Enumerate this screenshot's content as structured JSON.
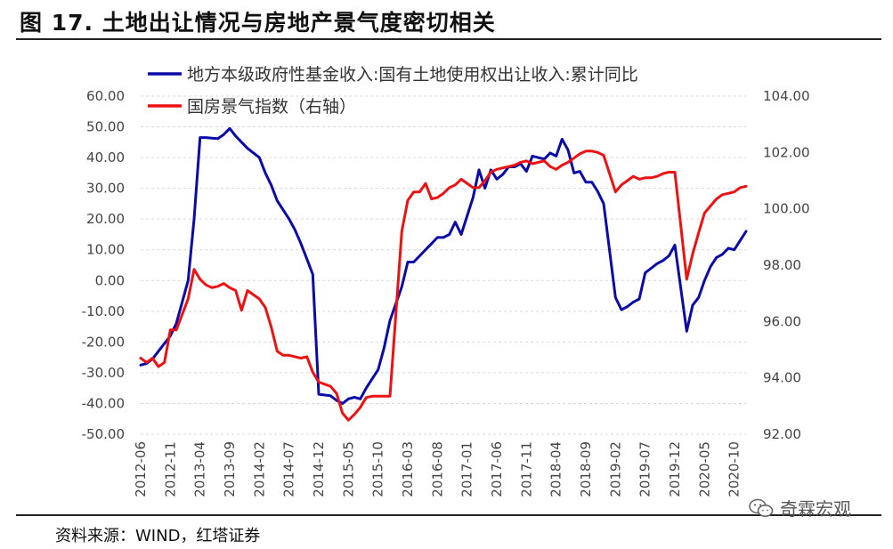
{
  "header": {
    "title": "图 17. 土地出让情况与房地产景气度密切相关"
  },
  "footer": {
    "source": "资料来源：WIND，红塔证券"
  },
  "watermark": {
    "text": "奇霖宏观",
    "icon": "wechat-icon"
  },
  "colors": {
    "series1": "#0a0aa8",
    "series2": "#ee1111",
    "grid": "#d9d9d9",
    "rule": "#222222"
  },
  "chart_data": {
    "type": "line",
    "left_axis": {
      "ylim": [
        -50,
        60
      ],
      "ticks": [
        "60.00",
        "50.00",
        "40.00",
        "30.00",
        "20.00",
        "10.00",
        "0.00",
        "-10.00",
        "-20.00",
        "-30.00",
        "-40.00",
        "-50.00"
      ],
      "tick_values": [
        60,
        50,
        40,
        30,
        20,
        10,
        0,
        -10,
        -20,
        -30,
        -40,
        -50
      ]
    },
    "right_axis": {
      "ylim": [
        92,
        104
      ],
      "ticks": [
        "104.00",
        "102.00",
        "100.00",
        "98.00",
        "96.00",
        "94.00",
        "92.00"
      ],
      "tick_values": [
        104,
        102,
        100,
        98,
        96,
        94,
        92
      ]
    },
    "x_range": [
      "2012-06",
      "2020-12"
    ],
    "x_ticks": [
      "2012-06",
      "2012-11",
      "2013-04",
      "2013-09",
      "2014-02",
      "2014-07",
      "2014-12",
      "2015-05",
      "2015-10",
      "2016-03",
      "2016-08",
      "2017-01",
      "2017-06",
      "2017-11",
      "2018-04",
      "2018-09",
      "2019-02",
      "2019-07",
      "2019-12",
      "2020-05",
      "2020-10"
    ],
    "legend_position": "top-left",
    "series": [
      {
        "name": "地方本级政府性基金收入:国有土地使用权出让收入:累计同比",
        "axis": "left",
        "points": [
          [
            "2012-06",
            -27.5
          ],
          [
            "2012-07",
            -27
          ],
          [
            "2012-08",
            -25.5
          ],
          [
            "2012-09",
            -23
          ],
          [
            "2012-10",
            -20.5
          ],
          [
            "2012-11",
            -18
          ],
          [
            "2012-12",
            -14
          ],
          [
            "2013-02",
            0
          ],
          [
            "2013-03",
            20
          ],
          [
            "2013-04",
            46.5
          ],
          [
            "2013-05",
            46.5
          ],
          [
            "2013-06",
            46.3
          ],
          [
            "2013-07",
            46.2
          ],
          [
            "2013-08",
            47.5
          ],
          [
            "2013-09",
            49.5
          ],
          [
            "2013-10",
            47
          ],
          [
            "2013-11",
            45
          ],
          [
            "2013-12",
            43
          ],
          [
            "2014-02",
            40
          ],
          [
            "2014-03",
            35
          ],
          [
            "2014-04",
            31
          ],
          [
            "2014-05",
            26
          ],
          [
            "2014-06",
            23
          ],
          [
            "2014-07",
            20
          ],
          [
            "2014-08",
            16.5
          ],
          [
            "2014-09",
            12
          ],
          [
            "2014-10",
            7
          ],
          [
            "2014-11",
            2
          ],
          [
            "2014-12",
            -37
          ],
          [
            "2015-02",
            -37.5
          ],
          [
            "2015-03",
            -39
          ],
          [
            "2015-04",
            -40
          ],
          [
            "2015-05",
            -38.5
          ],
          [
            "2015-06",
            -38
          ],
          [
            "2015-07",
            -38.5
          ],
          [
            "2015-08",
            -35
          ],
          [
            "2015-09",
            -32
          ],
          [
            "2015-10",
            -29
          ],
          [
            "2015-11",
            -22
          ],
          [
            "2015-12",
            -13
          ],
          [
            "2016-02",
            -2
          ],
          [
            "2016-03",
            6
          ],
          [
            "2016-04",
            6
          ],
          [
            "2016-05",
            8
          ],
          [
            "2016-06",
            10
          ],
          [
            "2016-07",
            12
          ],
          [
            "2016-08",
            14
          ],
          [
            "2016-09",
            14
          ],
          [
            "2016-10",
            15
          ],
          [
            "2016-11",
            19
          ],
          [
            "2016-12",
            15
          ],
          [
            "2017-02",
            27
          ],
          [
            "2017-03",
            36
          ],
          [
            "2017-04",
            30
          ],
          [
            "2017-05",
            36
          ],
          [
            "2017-06",
            33
          ],
          [
            "2017-07",
            34.5
          ],
          [
            "2017-08",
            37
          ],
          [
            "2017-09",
            37
          ],
          [
            "2017-10",
            38
          ],
          [
            "2017-11",
            35.5
          ],
          [
            "2017-12",
            40.5
          ],
          [
            "2018-02",
            39.5
          ],
          [
            "2018-03",
            41.5
          ],
          [
            "2018-04",
            40.5
          ],
          [
            "2018-05",
            46
          ],
          [
            "2018-06",
            42.5
          ],
          [
            "2018-07",
            35
          ],
          [
            "2018-08",
            35.5
          ],
          [
            "2018-09",
            32
          ],
          [
            "2018-10",
            32
          ],
          [
            "2018-11",
            29
          ],
          [
            "2018-12",
            25
          ],
          [
            "2019-02",
            -5.5
          ],
          [
            "2019-03",
            -9.5
          ],
          [
            "2019-04",
            -8.5
          ],
          [
            "2019-05",
            -7
          ],
          [
            "2019-06",
            -6
          ],
          [
            "2019-07",
            2.5
          ],
          [
            "2019-08",
            4
          ],
          [
            "2019-09",
            5.5
          ],
          [
            "2019-10",
            6.5
          ],
          [
            "2019-11",
            8
          ],
          [
            "2019-12",
            11.5
          ],
          [
            "2020-02",
            -16.5
          ],
          [
            "2020-03",
            -8
          ],
          [
            "2020-04",
            -5.5
          ],
          [
            "2020-05",
            0
          ],
          [
            "2020-06",
            4.5
          ],
          [
            "2020-07",
            7.5
          ],
          [
            "2020-08",
            8.5
          ],
          [
            "2020-09",
            10.5
          ],
          [
            "2020-10",
            10
          ],
          [
            "2020-11",
            13
          ],
          [
            "2020-12",
            16
          ]
        ]
      },
      {
        "name": "国房景气指数（右轴）",
        "axis": "right",
        "points": [
          [
            "2012-06",
            94.7
          ],
          [
            "2012-07",
            94.55
          ],
          [
            "2012-08",
            94.7
          ],
          [
            "2012-09",
            94.4
          ],
          [
            "2012-10",
            94.55
          ],
          [
            "2012-11",
            95.7
          ],
          [
            "2012-12",
            95.7
          ],
          [
            "2013-02",
            96.8
          ],
          [
            "2013-03",
            97.85
          ],
          [
            "2013-04",
            97.5
          ],
          [
            "2013-05",
            97.3
          ],
          [
            "2013-06",
            97.2
          ],
          [
            "2013-07",
            97.25
          ],
          [
            "2013-08",
            97.35
          ],
          [
            "2013-09",
            97.2
          ],
          [
            "2013-10",
            97.1
          ],
          [
            "2013-11",
            96.4
          ],
          [
            "2013-12",
            97.1
          ],
          [
            "2014-02",
            96.8
          ],
          [
            "2014-03",
            96.5
          ],
          [
            "2014-04",
            95.8
          ],
          [
            "2014-05",
            94.95
          ],
          [
            "2014-06",
            94.8
          ],
          [
            "2014-07",
            94.8
          ],
          [
            "2014-08",
            94.75
          ],
          [
            "2014-09",
            94.7
          ],
          [
            "2014-10",
            94.75
          ],
          [
            "2014-11",
            94.2
          ],
          [
            "2014-12",
            93.85
          ],
          [
            "2015-02",
            93.7
          ],
          [
            "2015-03",
            93.45
          ],
          [
            "2015-04",
            92.75
          ],
          [
            "2015-05",
            92.5
          ],
          [
            "2015-06",
            92.7
          ],
          [
            "2015-07",
            92.95
          ],
          [
            "2015-08",
            93.3
          ],
          [
            "2015-09",
            93.35
          ],
          [
            "2015-10",
            93.35
          ],
          [
            "2015-11",
            93.35
          ],
          [
            "2015-12",
            93.35
          ],
          [
            "2016-02",
            99.2
          ],
          [
            "2016-03",
            100.3
          ],
          [
            "2016-04",
            100.6
          ],
          [
            "2016-05",
            100.6
          ],
          [
            "2016-06",
            100.9
          ],
          [
            "2016-07",
            100.35
          ],
          [
            "2016-08",
            100.4
          ],
          [
            "2016-09",
            100.55
          ],
          [
            "2016-10",
            100.75
          ],
          [
            "2016-11",
            100.85
          ],
          [
            "2016-12",
            101.05
          ],
          [
            "2017-02",
            100.75
          ],
          [
            "2017-03",
            100.75
          ],
          [
            "2017-04",
            101.0
          ],
          [
            "2017-05",
            101.3
          ],
          [
            "2017-06",
            101.4
          ],
          [
            "2017-07",
            101.45
          ],
          [
            "2017-08",
            101.5
          ],
          [
            "2017-09",
            101.55
          ],
          [
            "2017-10",
            101.65
          ],
          [
            "2017-11",
            101.7
          ],
          [
            "2017-12",
            101.6
          ],
          [
            "2018-02",
            101.7
          ],
          [
            "2018-03",
            101.5
          ],
          [
            "2018-04",
            101.4
          ],
          [
            "2018-05",
            101.55
          ],
          [
            "2018-06",
            101.65
          ],
          [
            "2018-07",
            101.8
          ],
          [
            "2018-08",
            101.95
          ],
          [
            "2018-09",
            102.05
          ],
          [
            "2018-10",
            102.05
          ],
          [
            "2018-11",
            102.0
          ],
          [
            "2018-12",
            101.9
          ],
          [
            "2019-02",
            100.6
          ],
          [
            "2019-03",
            100.85
          ],
          [
            "2019-04",
            101.0
          ],
          [
            "2019-05",
            101.15
          ],
          [
            "2019-06",
            101.05
          ],
          [
            "2019-07",
            101.1
          ],
          [
            "2019-08",
            101.1
          ],
          [
            "2019-09",
            101.15
          ],
          [
            "2019-10",
            101.25
          ],
          [
            "2019-11",
            101.3
          ],
          [
            "2019-12",
            101.3
          ],
          [
            "2020-02",
            97.5
          ],
          [
            "2020-03",
            98.4
          ],
          [
            "2020-04",
            99.15
          ],
          [
            "2020-05",
            99.85
          ],
          [
            "2020-06",
            100.1
          ],
          [
            "2020-07",
            100.35
          ],
          [
            "2020-08",
            100.5
          ],
          [
            "2020-09",
            100.55
          ],
          [
            "2020-10",
            100.6
          ],
          [
            "2020-11",
            100.75
          ],
          [
            "2020-12",
            100.8
          ]
        ]
      }
    ]
  }
}
